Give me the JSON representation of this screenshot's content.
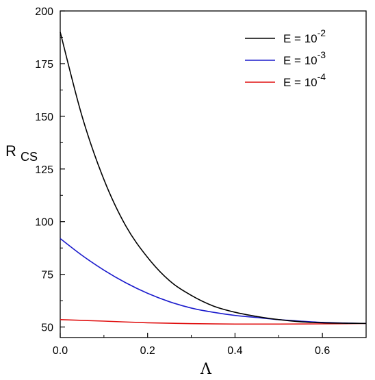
{
  "chart_data": {
    "type": "line",
    "title": "",
    "xlabel": "Λ",
    "ylabel_main": "R",
    "ylabel_sub": "CS",
    "xlim": [
      0,
      0.7
    ],
    "ylim": [
      45,
      200
    ],
    "xticks": [
      0.0,
      0.2,
      0.4,
      0.6
    ],
    "xtick_labels": [
      "0.0",
      "0.2",
      "0.4",
      "0.6"
    ],
    "yticks": [
      50,
      75,
      100,
      125,
      150,
      175,
      200
    ],
    "ytick_labels": [
      "50",
      "75",
      "100",
      "125",
      "150",
      "175",
      "200"
    ],
    "grid": false,
    "legend_position": "top-right",
    "series": [
      {
        "name": "E = 10^-2",
        "legend_base": "E = 10",
        "legend_exp": "-2",
        "color": "#000000",
        "x": [
          0.0,
          0.05,
          0.1,
          0.15,
          0.2,
          0.25,
          0.3,
          0.35,
          0.4,
          0.45,
          0.5,
          0.55,
          0.6,
          0.65,
          0.7
        ],
        "y": [
          190,
          150,
          120,
          98,
          83,
          72,
          65,
          60,
          57,
          55,
          53.5,
          52.5,
          52,
          51.8,
          51.7
        ]
      },
      {
        "name": "E = 10^-3",
        "legend_base": "E = 10",
        "legend_exp": "-3",
        "color": "#1a1acc",
        "x": [
          0.0,
          0.05,
          0.1,
          0.15,
          0.2,
          0.25,
          0.3,
          0.35,
          0.4,
          0.45,
          0.5,
          0.55,
          0.6,
          0.65,
          0.7
        ],
        "y": [
          92,
          84,
          77,
          71,
          66,
          62,
          59,
          57,
          55.5,
          54.5,
          53.5,
          52.8,
          52.2,
          51.9,
          51.7
        ]
      },
      {
        "name": "E = 10^-4",
        "legend_base": "E = 10",
        "legend_exp": "-4",
        "color": "#e01010",
        "x": [
          0.0,
          0.1,
          0.2,
          0.3,
          0.4,
          0.5,
          0.6,
          0.7
        ],
        "y": [
          53.5,
          52.8,
          52.0,
          51.6,
          51.4,
          51.4,
          51.5,
          51.7
        ]
      }
    ]
  }
}
